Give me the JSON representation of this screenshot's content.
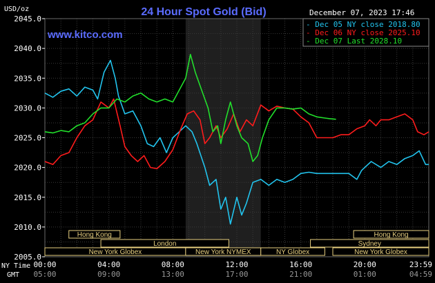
{
  "chart_data": {
    "type": "line",
    "title": "24 Hour Spot Gold (Bid)",
    "watermark": "www.kitco.com",
    "datetime": "December 07, 2023 17:46",
    "ylabel": "USD/oz",
    "ylim": [
      2005,
      2045
    ],
    "yticks": [
      "2045.0",
      "2040.0",
      "2035.0",
      "2030.0",
      "2025.0",
      "2020.0",
      "2015.0",
      "2010.0",
      "2005.0"
    ],
    "ytick_values": [
      2045,
      2040,
      2035,
      2030,
      2025,
      2020,
      2015,
      2010,
      2005
    ],
    "xlim": [
      0,
      24
    ],
    "xticks_ny": [
      "00:00",
      "04:00",
      "08:00",
      "12:00",
      "16:00",
      "20:00",
      "23:59"
    ],
    "xticks_gmt": [
      "05:00",
      "09:00",
      "13:00",
      "17:00",
      "21:00",
      "01:00",
      "04:59"
    ],
    "xtick_hours": [
      0,
      4,
      8,
      12,
      16,
      20,
      24
    ],
    "row_label_ny": "NY Time",
    "row_label_gmt": "GMT",
    "shaded_region": [
      8.8,
      13.5
    ],
    "grid": true,
    "legend_position": "top-right",
    "sessions": [
      {
        "name": "Hong Kong",
        "row": 0,
        "start": 1.5,
        "end": 4.7
      },
      {
        "name": "Hong Kong",
        "row": 0,
        "start": 19.3,
        "end": 24
      },
      {
        "name": "London",
        "row": 1,
        "start": 3.5,
        "end": 11.5
      },
      {
        "name": "Sydney",
        "row": 1,
        "start": 16.6,
        "end": 24
      },
      {
        "name": "New York Globex",
        "row": 2,
        "start": 0,
        "end": 8.8
      },
      {
        "name": "New York NYMEX",
        "row": 2,
        "start": 8.8,
        "end": 13.5
      },
      {
        "name": "NY Globex",
        "row": 2,
        "start": 13.5,
        "end": 17.5
      },
      {
        "name": "New York Globex",
        "row": 2,
        "start": 18,
        "end": 24
      }
    ],
    "series": [
      {
        "name": "Dec 05 NY close 2018.80",
        "color": "#22c4ee",
        "points": [
          [
            0,
            2032.5
          ],
          [
            0.5,
            2031.8
          ],
          [
            1,
            2032.8
          ],
          [
            1.5,
            2033.2
          ],
          [
            2,
            2032
          ],
          [
            2.5,
            2033.5
          ],
          [
            3,
            2033
          ],
          [
            3.3,
            2031.5
          ],
          [
            3.7,
            2036
          ],
          [
            4.1,
            2038
          ],
          [
            4.4,
            2035
          ],
          [
            4.6,
            2032
          ],
          [
            5,
            2029
          ],
          [
            5.5,
            2029.5
          ],
          [
            6,
            2027
          ],
          [
            6.4,
            2024
          ],
          [
            6.8,
            2023.5
          ],
          [
            7.2,
            2025
          ],
          [
            7.6,
            2022.5
          ],
          [
            8,
            2025
          ],
          [
            8.4,
            2026
          ],
          [
            8.8,
            2027
          ],
          [
            9.2,
            2026
          ],
          [
            9.5,
            2024
          ],
          [
            10,
            2020
          ],
          [
            10.3,
            2017
          ],
          [
            10.7,
            2018
          ],
          [
            11,
            2013
          ],
          [
            11.3,
            2015
          ],
          [
            11.6,
            2010.5
          ],
          [
            12,
            2015
          ],
          [
            12.3,
            2012
          ],
          [
            12.6,
            2014
          ],
          [
            13,
            2017.5
          ],
          [
            13.5,
            2018
          ],
          [
            14,
            2017
          ],
          [
            14.5,
            2018
          ],
          [
            15,
            2017.5
          ],
          [
            15.5,
            2018
          ],
          [
            16,
            2019
          ],
          [
            16.5,
            2019.2
          ],
          [
            17,
            2019
          ],
          [
            18,
            2019
          ],
          [
            19,
            2019
          ],
          [
            19.5,
            2018
          ],
          [
            19.8,
            2019.5
          ],
          [
            20,
            2020
          ],
          [
            20.4,
            2021
          ],
          [
            21,
            2020
          ],
          [
            21.5,
            2021
          ],
          [
            22,
            2020.5
          ],
          [
            22.5,
            2021.5
          ],
          [
            23,
            2022
          ],
          [
            23.4,
            2022.8
          ],
          [
            23.8,
            2020.5
          ],
          [
            24,
            2020.5
          ]
        ]
      },
      {
        "name": "Dec 06 NY close 2025.10",
        "color": "#ff1c1c",
        "points": [
          [
            0,
            2021
          ],
          [
            0.5,
            2020.5
          ],
          [
            1,
            2022
          ],
          [
            1.5,
            2022.5
          ],
          [
            2,
            2025
          ],
          [
            2.5,
            2027
          ],
          [
            3,
            2028
          ],
          [
            3.5,
            2031
          ],
          [
            4,
            2030
          ],
          [
            4.3,
            2031.5
          ],
          [
            4.7,
            2027
          ],
          [
            5,
            2023.5
          ],
          [
            5.4,
            2022
          ],
          [
            5.8,
            2021
          ],
          [
            6.2,
            2022
          ],
          [
            6.6,
            2020
          ],
          [
            7,
            2019.8
          ],
          [
            7.5,
            2021
          ],
          [
            8,
            2023
          ],
          [
            8.5,
            2026.5
          ],
          [
            8.9,
            2029
          ],
          [
            9.3,
            2029.5
          ],
          [
            9.7,
            2028
          ],
          [
            10,
            2024
          ],
          [
            10.3,
            2025
          ],
          [
            10.7,
            2027
          ],
          [
            11,
            2025
          ],
          [
            11.4,
            2026.5
          ],
          [
            11.8,
            2029
          ],
          [
            12.2,
            2026
          ],
          [
            12.6,
            2028
          ],
          [
            13,
            2027
          ],
          [
            13.5,
            2030.5
          ],
          [
            14,
            2029.5
          ],
          [
            14.5,
            2030.3
          ],
          [
            15,
            2030
          ],
          [
            15.5,
            2029.8
          ],
          [
            16,
            2028.5
          ],
          [
            16.5,
            2027.5
          ],
          [
            17,
            2025
          ],
          [
            17.5,
            2025
          ],
          [
            18,
            2025
          ],
          [
            18.5,
            2025.5
          ],
          [
            19,
            2025.5
          ],
          [
            19.5,
            2026.5
          ],
          [
            20,
            2027
          ],
          [
            20.3,
            2028
          ],
          [
            20.7,
            2027
          ],
          [
            21,
            2028
          ],
          [
            21.5,
            2028
          ],
          [
            22,
            2028.5
          ],
          [
            22.5,
            2029
          ],
          [
            23,
            2028
          ],
          [
            23.3,
            2026
          ],
          [
            23.7,
            2025.5
          ],
          [
            24,
            2026
          ]
        ]
      },
      {
        "name": "Dec 07 Last 2028.10",
        "color": "#22e02c",
        "points": [
          [
            0,
            2026
          ],
          [
            0.5,
            2025.8
          ],
          [
            1,
            2026.2
          ],
          [
            1.5,
            2026
          ],
          [
            2,
            2027
          ],
          [
            2.5,
            2027.5
          ],
          [
            3,
            2029
          ],
          [
            3.5,
            2030
          ],
          [
            4,
            2030
          ],
          [
            4.5,
            2031.5
          ],
          [
            5,
            2031
          ],
          [
            5.5,
            2032
          ],
          [
            6,
            2032.5
          ],
          [
            6.5,
            2031.5
          ],
          [
            7,
            2031
          ],
          [
            7.5,
            2031.5
          ],
          [
            8,
            2031
          ],
          [
            8.4,
            2033
          ],
          [
            8.8,
            2035
          ],
          [
            9.1,
            2039
          ],
          [
            9.4,
            2036
          ],
          [
            9.8,
            2033
          ],
          [
            10.2,
            2030
          ],
          [
            10.5,
            2026
          ],
          [
            10.8,
            2027
          ],
          [
            11,
            2024
          ],
          [
            11.3,
            2028
          ],
          [
            11.6,
            2031
          ],
          [
            12,
            2027
          ],
          [
            12.3,
            2025
          ],
          [
            12.7,
            2024
          ],
          [
            13,
            2021
          ],
          [
            13.3,
            2022
          ],
          [
            13.6,
            2025
          ],
          [
            14,
            2028
          ],
          [
            14.5,
            2030
          ],
          [
            15,
            2030
          ],
          [
            15.5,
            2029.8
          ],
          [
            16,
            2030
          ],
          [
            16.5,
            2029
          ],
          [
            17,
            2028.5
          ],
          [
            17.5,
            2028.3
          ],
          [
            17.8,
            2028.2
          ],
          [
            18.2,
            2028.1
          ]
        ]
      }
    ]
  }
}
